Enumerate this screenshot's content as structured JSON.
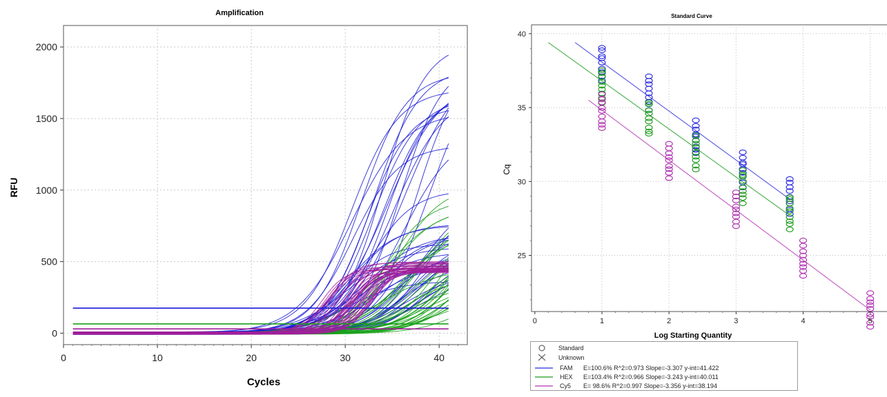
{
  "chart_data": [
    {
      "type": "line",
      "title": "Amplification",
      "xlabel": "Cycles",
      "ylabel": "RFU",
      "xlim": [
        0,
        43
      ],
      "ylim": [
        -80,
        2150
      ],
      "xticks": [
        0,
        10,
        20,
        30,
        40
      ],
      "yticks": [
        0,
        500,
        1000,
        1500,
        2000
      ],
      "grid": true,
      "series": [
        {
          "channel": "FAM",
          "color": "#1a1ad6",
          "curves": 46,
          "cq_range": [
            27,
            36
          ],
          "plateau_range": [
            350,
            2050
          ],
          "threshold": 175
        },
        {
          "channel": "HEX",
          "color": "#18a018",
          "curves": 34,
          "cq_range": [
            31,
            40
          ],
          "plateau_range": [
            250,
            1050
          ],
          "threshold": 65
        },
        {
          "channel": "Cy5",
          "color": "#a0209a",
          "curves": 34,
          "cq_range": [
            24,
            30
          ],
          "plateau_range": [
            420,
            500
          ],
          "threshold": 30
        }
      ]
    },
    {
      "type": "scatter",
      "title": "Standard Curve",
      "xlabel": "Log Starting Quantity",
      "ylabel": "Cq",
      "xlim": [
        -0.05,
        5.25
      ],
      "ylim": [
        21.2,
        40.6
      ],
      "xticks": [
        0,
        1,
        2,
        3,
        4,
        5
      ],
      "yticks": [
        25,
        30,
        35,
        40
      ],
      "grid": true,
      "series": [
        {
          "name": "FAM",
          "color": "#2a2ae0",
          "x": [
            1,
            1.7,
            2.4,
            3.1,
            3.8
          ],
          "y": [
            38.0,
            36.0,
            33.0,
            30.8,
            29.0
          ],
          "fit": {
            "x": [
              0.6,
              3.8
            ],
            "y": [
              39.4,
              28.8
            ]
          }
        },
        {
          "name": "HEX",
          "color": "#1a9a1a",
          "x": [
            1,
            1.7,
            2.4,
            3.1,
            3.8
          ],
          "y": [
            36.5,
            34.3,
            32.0,
            29.7,
            27.9
          ],
          "fit": {
            "x": [
              0.2,
              3.8
            ],
            "y": [
              39.4,
              27.7
            ]
          }
        },
        {
          "name": "Cy5",
          "color": "#b030b0",
          "x": [
            1,
            2,
            3,
            4,
            5
          ],
          "y": [
            34.7,
            31.4,
            28.1,
            24.8,
            21.3
          ],
          "fit": {
            "x": [
              0.8,
              5.0
            ],
            "y": [
              35.5,
              21.3
            ]
          }
        }
      ],
      "legend": {
        "standard_label": "Standard",
        "unknown_label": "Unknown",
        "entries": [
          {
            "name": "FAM",
            "stats": "E=100.6% R^2=0.973 Slope=-3.307 y-int=41.422",
            "color": "#2a2ae0"
          },
          {
            "name": "HEX",
            "stats": "E=103.4% R^2=0.966 Slope=-3.243 y-int=40.011",
            "color": "#1a9a1a"
          },
          {
            "name": "Cy5",
            "stats": "E= 98.6% R^2=0.997 Slope=-3.356 y-int=38.194",
            "color": "#b030b0"
          }
        ]
      }
    }
  ]
}
